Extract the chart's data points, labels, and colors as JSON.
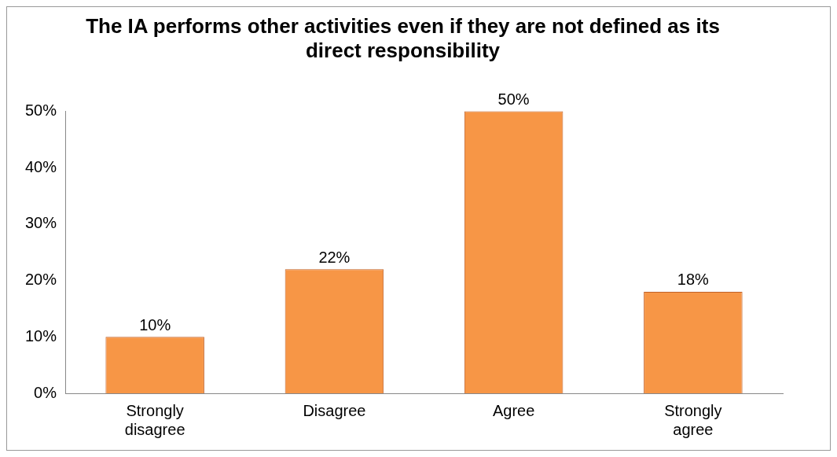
{
  "chart_data": {
    "type": "bar",
    "title": "The IA performs other activities even if they are not defined as its direct responsibility",
    "categories": [
      "Strongly disagree",
      "Disagree",
      "Agree",
      "Strongly agree"
    ],
    "values": [
      10,
      22,
      50,
      18
    ],
    "value_labels": [
      "10%",
      "22%",
      "50%",
      "18%"
    ],
    "color": "#f79646",
    "ylim": [
      0,
      50
    ],
    "yticks": [
      {
        "value": 0,
        "label": "0%"
      },
      {
        "value": 10,
        "label": "10%"
      },
      {
        "value": 20,
        "label": "20%"
      },
      {
        "value": 30,
        "label": "30%"
      },
      {
        "value": 40,
        "label": "40%"
      },
      {
        "value": 50,
        "label": "50%"
      }
    ],
    "grid": false,
    "legend": false
  }
}
